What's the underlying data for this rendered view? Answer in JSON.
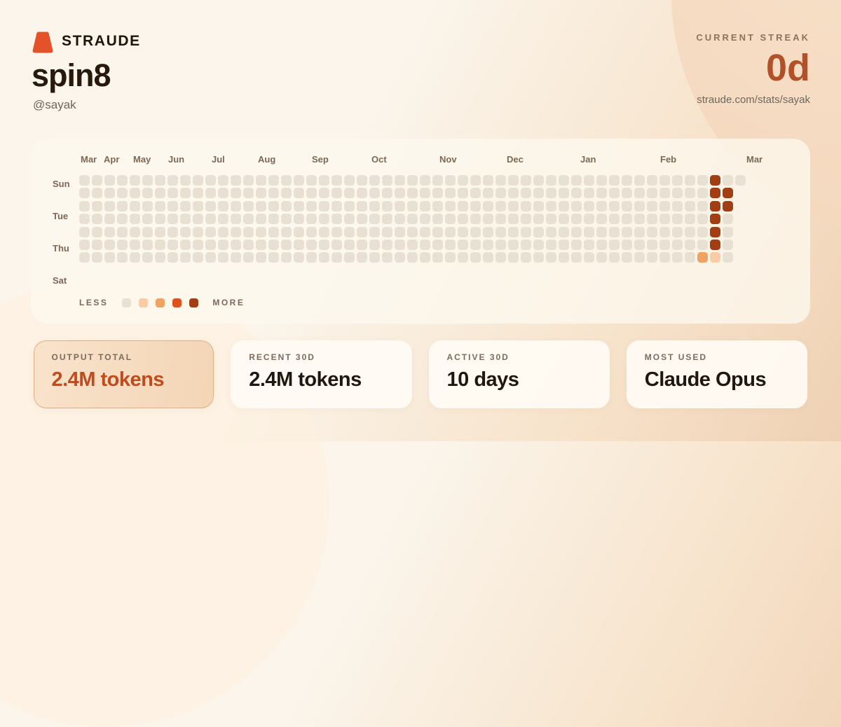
{
  "brand": {
    "name": "STRAUDE",
    "accent_color": "#e5522a"
  },
  "user": {
    "title": "spin8",
    "handle": "@sayak"
  },
  "streak": {
    "label": "CURRENT STREAK",
    "value": "0d",
    "url": "straude.com/stats/sayak",
    "value_color": "#b2502a"
  },
  "heatmap": {
    "months": [
      "Mar",
      "Apr",
      "May",
      "Jun",
      "Jul",
      "Aug",
      "Sep",
      "Oct",
      "Nov",
      "Dec",
      "Jan",
      "Feb",
      "Mar"
    ],
    "day_labels": [
      "Sun",
      "Tue",
      "Thu",
      "Sat"
    ],
    "levels": [
      "#e8e1d3",
      "#f8cda6",
      "#f0a263",
      "#e0521d",
      "#a23d14"
    ],
    "columns": 53,
    "columns_per_row": [
      53,
      52,
      52,
      52,
      52,
      52,
      52
    ],
    "active_cells": [
      {
        "day": "Sun",
        "row": 0,
        "col": 50,
        "level": 4
      },
      {
        "day": "Mon",
        "row": 1,
        "col": 50,
        "level": 4
      },
      {
        "day": "Mon",
        "row": 1,
        "col": 51,
        "level": 4
      },
      {
        "day": "Tue",
        "row": 2,
        "col": 50,
        "level": 4
      },
      {
        "day": "Tue",
        "row": 2,
        "col": 51,
        "level": 4
      },
      {
        "day": "Wed",
        "row": 3,
        "col": 50,
        "level": 4
      },
      {
        "day": "Thu",
        "row": 4,
        "col": 50,
        "level": 4
      },
      {
        "day": "Fri",
        "row": 5,
        "col": 50,
        "level": 4
      },
      {
        "day": "Sat",
        "row": 6,
        "col": 49,
        "level": 2
      },
      {
        "day": "Sat",
        "row": 6,
        "col": 50,
        "level": 1
      }
    ],
    "legend": {
      "less": "LESS",
      "more": "MORE"
    }
  },
  "cards": [
    {
      "label": "OUTPUT TOTAL",
      "value": "2.4M tokens",
      "highlight": true
    },
    {
      "label": "RECENT 30D",
      "value": "2.4M tokens",
      "highlight": false
    },
    {
      "label": "ACTIVE 30D",
      "value": "10 days",
      "highlight": false
    },
    {
      "label": "MOST USED",
      "value": "Claude Opus",
      "highlight": false
    }
  ]
}
